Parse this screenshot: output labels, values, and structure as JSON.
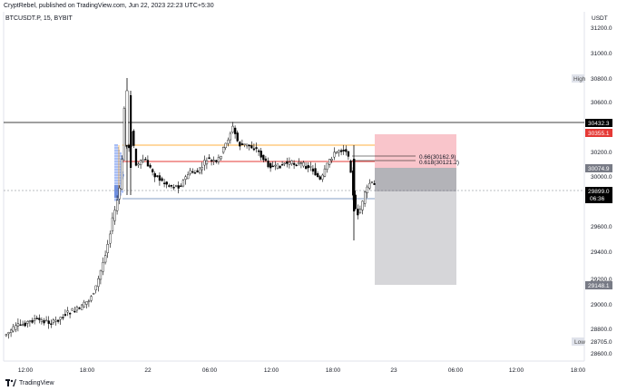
{
  "header": {
    "publisher_line": "CryptRebel, published on TradingView.com, Jun 22, 2023 22:23 UTC+5:30",
    "symbol_line": "BTCUSDT.P, 15, BYBIT"
  },
  "footer": {
    "brand": "TradingView"
  },
  "price_axis": {
    "currency": "USDT",
    "ticks": [
      "31200.0",
      "31000.0",
      "30600.0",
      "30200.0",
      "30000.0",
      "29600.0",
      "29400.0",
      "29200.0",
      "29000.0",
      "28800.0",
      "28600.0"
    ],
    "badges": {
      "high_label": "High",
      "high_value": "30800.0",
      "level_a": "30432.3",
      "level_b": "30355.1",
      "level_c": "30074.9",
      "current_price": "29899.0",
      "countdown": "06:36",
      "target": "29148.1",
      "low_label": "Low",
      "low_value": "28705.0"
    }
  },
  "time_axis": {
    "ticks": [
      "12:00",
      "18:00",
      "22",
      "06:00",
      "12:00",
      "18:00",
      "23",
      "06:00",
      "12:00",
      "18:00"
    ]
  },
  "annotations": {
    "fib_066": "0.66(30162.9)",
    "fib_0618": "0.618(30121.2)"
  },
  "colors": {
    "up": "#ffffff",
    "down": "#000000",
    "candle_outline": "#000000",
    "orange_line": "#ff9800",
    "red_line": "#e53935",
    "blue_line": "#5d7fb3",
    "stop_zone": "#f9c5cb",
    "target_zone": "#d6d6d9",
    "volume_profile": "#a9bff5",
    "current_price_badge": "#000000",
    "red_badge": "#e53935",
    "grey_badge": "#787b86"
  }
}
